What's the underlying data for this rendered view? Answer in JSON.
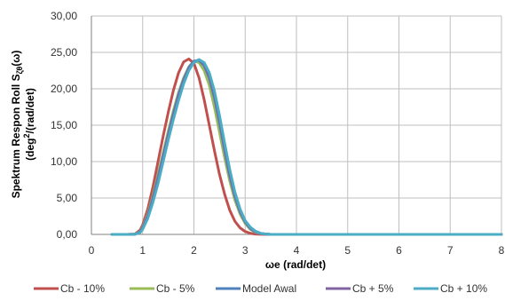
{
  "chart_data": {
    "type": "line",
    "title": "",
    "xlabel": "ωe (rad/det)",
    "ylabel_line1_main": "Spektrum Respon Roll S",
    "ylabel_line1_sub": "ζθ",
    "ylabel_line1_tail": "(ω)",
    "ylabel_line2_pre": "(deg",
    "ylabel_line2_sup": "2",
    "ylabel_line2_post": "/(rad/det)",
    "xlim": [
      0,
      8
    ],
    "ylim": [
      0,
      30
    ],
    "x_ticks": [
      "0",
      "1",
      "2",
      "3",
      "4",
      "5",
      "6",
      "7",
      "8"
    ],
    "y_ticks": [
      "0,00",
      "5,00",
      "10,00",
      "15,00",
      "20,00",
      "25,00",
      "30,00"
    ],
    "grid": true,
    "legend_position": "bottom",
    "series": [
      {
        "name": "Cb - 10%",
        "color": "#c0504d",
        "x": [
          0.4,
          0.7,
          0.85,
          0.95,
          1.0,
          1.1,
          1.2,
          1.3,
          1.4,
          1.5,
          1.6,
          1.7,
          1.8,
          1.9,
          2.0,
          2.1,
          2.2,
          2.3,
          2.4,
          2.5,
          2.6,
          2.7,
          2.8,
          2.9,
          3.0,
          3.1,
          3.2,
          3.3,
          3.4,
          3.6,
          8.0
        ],
        "y": [
          0,
          0,
          0.05,
          0.6,
          1.3,
          3.5,
          6.5,
          10.0,
          13.5,
          16.8,
          19.8,
          22.2,
          23.7,
          24.1,
          23.5,
          21.5,
          18.5,
          15.0,
          11.5,
          8.2,
          5.5,
          3.3,
          1.8,
          0.9,
          0.4,
          0.15,
          0.05,
          0.02,
          0,
          0,
          0
        ]
      },
      {
        "name": "Cb - 5%",
        "color": "#9bbb59",
        "x": [
          0.4,
          0.7,
          0.85,
          0.95,
          1.0,
          1.1,
          1.2,
          1.3,
          1.4,
          1.5,
          1.6,
          1.7,
          1.8,
          1.9,
          2.0,
          2.1,
          2.2,
          2.3,
          2.4,
          2.5,
          2.6,
          2.7,
          2.8,
          2.9,
          3.0,
          3.1,
          3.2,
          3.3,
          3.4,
          3.5,
          3.7,
          8.0
        ],
        "y": [
          0,
          0,
          0.03,
          0.4,
          1.0,
          2.8,
          5.3,
          8.2,
          11.2,
          14.2,
          17.0,
          19.5,
          21.5,
          23.0,
          23.8,
          23.6,
          22.5,
          20.5,
          17.5,
          14.0,
          10.5,
          7.3,
          4.7,
          2.8,
          1.5,
          0.7,
          0.3,
          0.1,
          0.03,
          0,
          0,
          0
        ]
      },
      {
        "name": "Model Awal",
        "color": "#4f81bd",
        "x": [
          0.4,
          0.7,
          0.85,
          0.95,
          1.0,
          1.1,
          1.2,
          1.3,
          1.4,
          1.5,
          1.6,
          1.7,
          1.8,
          1.9,
          2.0,
          2.1,
          2.2,
          2.3,
          2.4,
          2.5,
          2.6,
          2.7,
          2.8,
          2.9,
          3.0,
          3.1,
          3.2,
          3.3,
          3.4,
          3.5,
          3.7,
          8.0
        ],
        "y": [
          0,
          0,
          0.03,
          0.35,
          0.9,
          2.6,
          5.0,
          7.8,
          10.8,
          13.8,
          16.6,
          19.2,
          21.3,
          22.9,
          23.8,
          23.9,
          23.2,
          21.5,
          18.8,
          15.3,
          11.5,
          8.0,
          5.2,
          3.1,
          1.7,
          0.8,
          0.35,
          0.12,
          0.04,
          0,
          0,
          0
        ]
      },
      {
        "name": "Cb + 5%",
        "color": "#8064a2",
        "x": [
          0.4,
          0.7,
          0.85,
          0.95,
          1.0,
          1.1,
          1.2,
          1.3,
          1.4,
          1.5,
          1.6,
          1.7,
          1.8,
          1.9,
          2.0,
          2.1,
          2.2,
          2.3,
          2.4,
          2.5,
          2.6,
          2.7,
          2.8,
          2.9,
          3.0,
          3.1,
          3.2,
          3.3,
          3.4,
          3.5,
          3.7,
          8.0
        ],
        "y": [
          0,
          0,
          0.02,
          0.3,
          0.8,
          2.4,
          4.7,
          7.4,
          10.4,
          13.4,
          16.2,
          18.8,
          21.0,
          22.7,
          23.7,
          24.0,
          23.4,
          21.8,
          19.2,
          15.8,
          12.0,
          8.4,
          5.5,
          3.3,
          1.8,
          0.9,
          0.4,
          0.14,
          0.05,
          0,
          0,
          0
        ]
      },
      {
        "name": "Cb + 10%",
        "color": "#4bacc6",
        "x": [
          0.4,
          0.7,
          0.85,
          0.95,
          1.0,
          1.1,
          1.2,
          1.3,
          1.4,
          1.5,
          1.6,
          1.7,
          1.8,
          1.9,
          2.0,
          2.1,
          2.2,
          2.3,
          2.4,
          2.5,
          2.6,
          2.7,
          2.8,
          2.9,
          3.0,
          3.1,
          3.2,
          3.3,
          3.4,
          3.5,
          3.7,
          8.0
        ],
        "y": [
          0,
          0,
          0.02,
          0.25,
          0.7,
          2.2,
          4.4,
          7.0,
          10.0,
          13.0,
          15.8,
          18.4,
          20.7,
          22.5,
          23.6,
          24.0,
          23.6,
          22.2,
          19.7,
          16.3,
          12.5,
          8.9,
          5.8,
          3.5,
          1.9,
          1.0,
          0.45,
          0.16,
          0.06,
          0,
          0,
          0
        ]
      }
    ]
  }
}
